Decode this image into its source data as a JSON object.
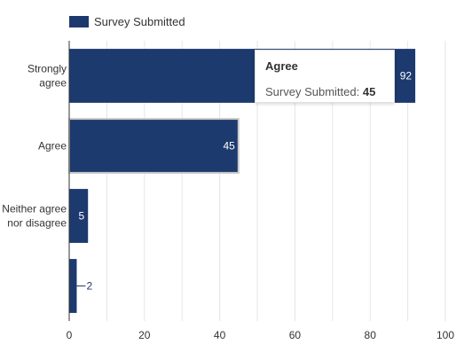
{
  "chart_data": {
    "type": "bar",
    "orientation": "horizontal",
    "categories": [
      "Strongly\nagree",
      "Agree",
      "Neither agree\nnor disagree",
      ""
    ],
    "series": [
      {
        "name": "Survey Submitted",
        "values": [
          92,
          45,
          5,
          2
        ]
      }
    ],
    "data_labels": [
      "92",
      "45",
      "5",
      "2"
    ],
    "xlim": [
      0,
      100
    ],
    "x_ticks": [
      0,
      20,
      40,
      60,
      80,
      100
    ],
    "grid": true,
    "legend_position": "top-left",
    "bar_color": "#1d3a6e"
  },
  "tooltip": {
    "title": "Agree",
    "series_label": "Survey Submitted:",
    "value": "45"
  }
}
